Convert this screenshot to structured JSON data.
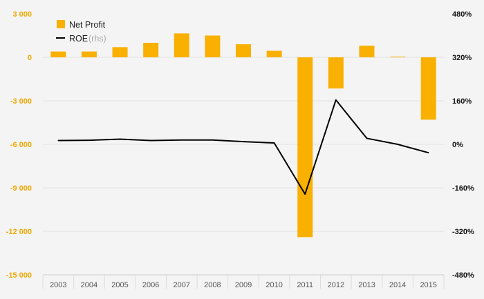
{
  "chart_data": {
    "type": "bar",
    "categories": [
      "2003",
      "2004",
      "2005",
      "2006",
      "2007",
      "2008",
      "2009",
      "2010",
      "2011",
      "2012",
      "2013",
      "2014",
      "2015"
    ],
    "series": [
      {
        "name": "Net Profit",
        "type": "bar",
        "axis": "left",
        "color": "#f9b000",
        "values": [
          400,
          400,
          700,
          1000,
          1650,
          1500,
          900,
          450,
          -12400,
          -2150,
          800,
          50,
          -4300
        ]
      },
      {
        "name": "ROE",
        "note": "(rhs)",
        "type": "line",
        "axis": "right",
        "color": "#000000",
        "values": [
          14,
          15,
          19,
          14,
          16,
          16,
          10,
          5,
          -183,
          163,
          22,
          0,
          -31
        ]
      }
    ],
    "y_left": {
      "ylim": [
        -15000,
        3000
      ],
      "ticks": [
        3000,
        0,
        -3000,
        -6000,
        -9000,
        -12000,
        -15000
      ],
      "tick_labels": [
        "3 000",
        "0",
        "-3 000",
        "-6 000",
        "-9 000",
        "-12 000",
        "-15 000"
      ],
      "color": "#f0a800"
    },
    "y_right": {
      "ylim": [
        -480,
        480
      ],
      "ticks": [
        480,
        320,
        160,
        0,
        -160,
        -320,
        -480
      ],
      "tick_labels": [
        "480%",
        "320%",
        "160%",
        "0%",
        "-160%",
        "-320%",
        "-480%"
      ],
      "color": "#111111"
    },
    "legend": {
      "placement": "top-left",
      "items": [
        {
          "label": "Net Profit",
          "note": "",
          "color": "#f9b000",
          "marker": "square"
        },
        {
          "label": "ROE",
          "note": "(rhs)",
          "color": "#000000",
          "marker": "line"
        }
      ]
    },
    "grid": true,
    "title": "",
    "xlabel": "",
    "ylabel": ""
  }
}
